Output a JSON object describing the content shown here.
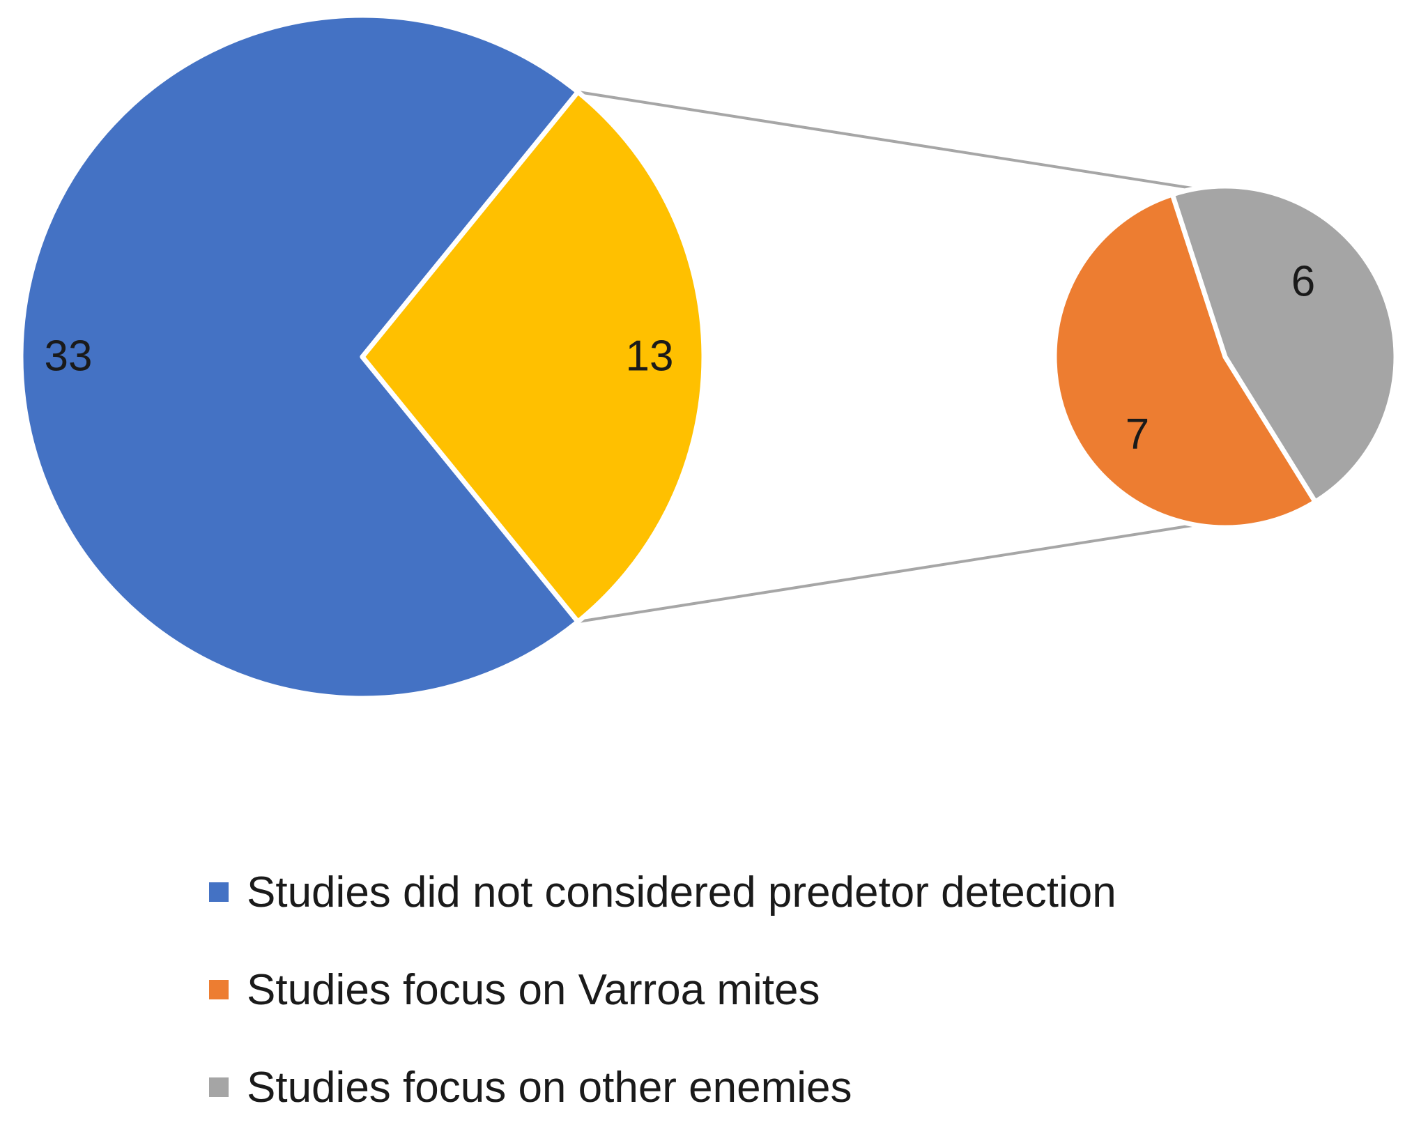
{
  "chart_data": {
    "type": "pie",
    "subtype": "pie-of-pie",
    "main_pie": {
      "slices": [
        {
          "key": "not_considered",
          "label": "Studies did not considered predetor detection",
          "value": 33,
          "color": "#4472C4"
        },
        {
          "key": "predator_detection",
          "label": "",
          "value": 13,
          "color": "#FFC000"
        }
      ]
    },
    "secondary_pie": {
      "source_slice": "predator_detection",
      "slices": [
        {
          "key": "varroa",
          "label": "Studies focus on Varroa mites",
          "value": 7,
          "color": "#ED7D31"
        },
        {
          "key": "other",
          "label": "Studies focus on other enemies",
          "value": 6,
          "color": "#A5A5A5"
        }
      ]
    },
    "data_labels": {
      "not_considered": "33",
      "predator_detection": "13",
      "varroa": "7",
      "other": "6"
    },
    "legend": {
      "position": "bottom",
      "items": [
        {
          "label": "Studies did not considered predetor detection",
          "color": "#4472C4"
        },
        {
          "label": "Studies focus on Varroa mites",
          "color": "#ED7D31"
        },
        {
          "label": "Studies focus on other enemies",
          "color": "#A5A5A5"
        }
      ]
    }
  }
}
